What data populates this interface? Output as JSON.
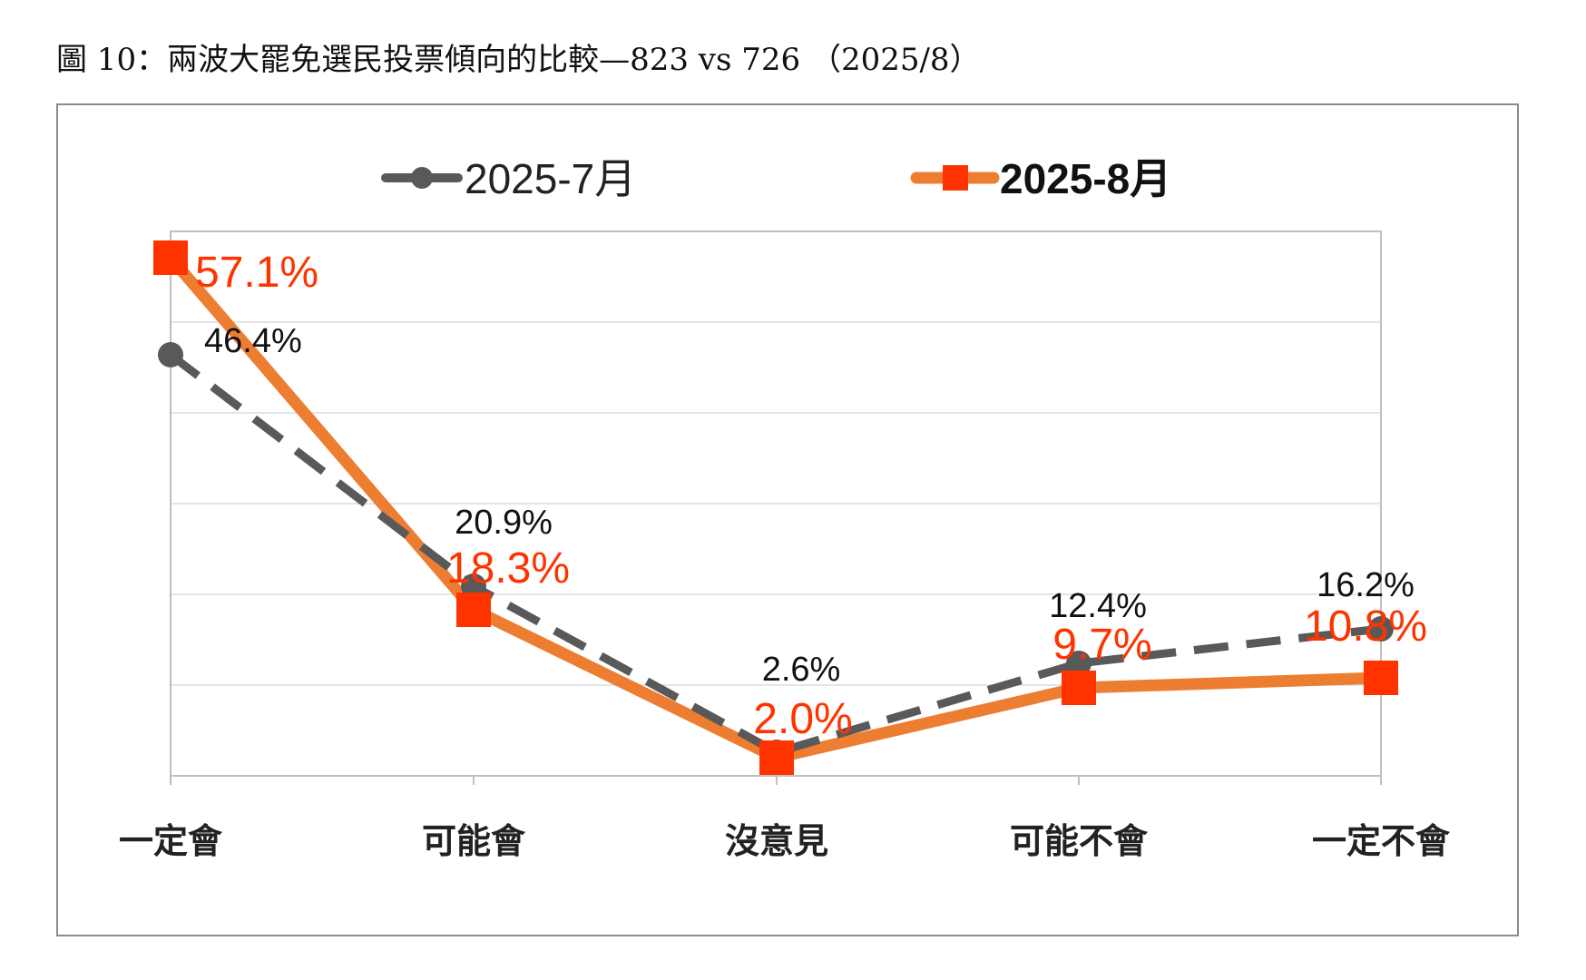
{
  "caption": "圖 10：兩波大罷免選民投票傾向的比較—823 vs 726 （2025/8）",
  "colors": {
    "jul": "#595959",
    "aug": "#ED7D31",
    "aug_marker": "#FF3300",
    "aug_label": "#FF3300"
  },
  "chart_data": {
    "type": "line",
    "categories": [
      "一定會",
      "可能會",
      "沒意見",
      "可能不會",
      "一定不會"
    ],
    "series": [
      {
        "name": "2025-7月",
        "values": [
          46.4,
          20.9,
          2.6,
          12.4,
          16.2
        ],
        "labels": [
          "46.4%",
          "20.9%",
          "2.6%",
          "12.4%",
          "16.2%"
        ],
        "line_style": "dashed",
        "marker": "circle"
      },
      {
        "name": "2025-8月",
        "values": [
          57.1,
          18.3,
          2.0,
          9.7,
          10.8
        ],
        "labels": [
          "57.1%",
          "18.3%",
          "2.0%",
          "9.7%",
          "10.8%"
        ],
        "line_style": "solid",
        "marker": "square"
      }
    ],
    "ylim": [
      0,
      60
    ],
    "grid": true,
    "legend": "top"
  }
}
